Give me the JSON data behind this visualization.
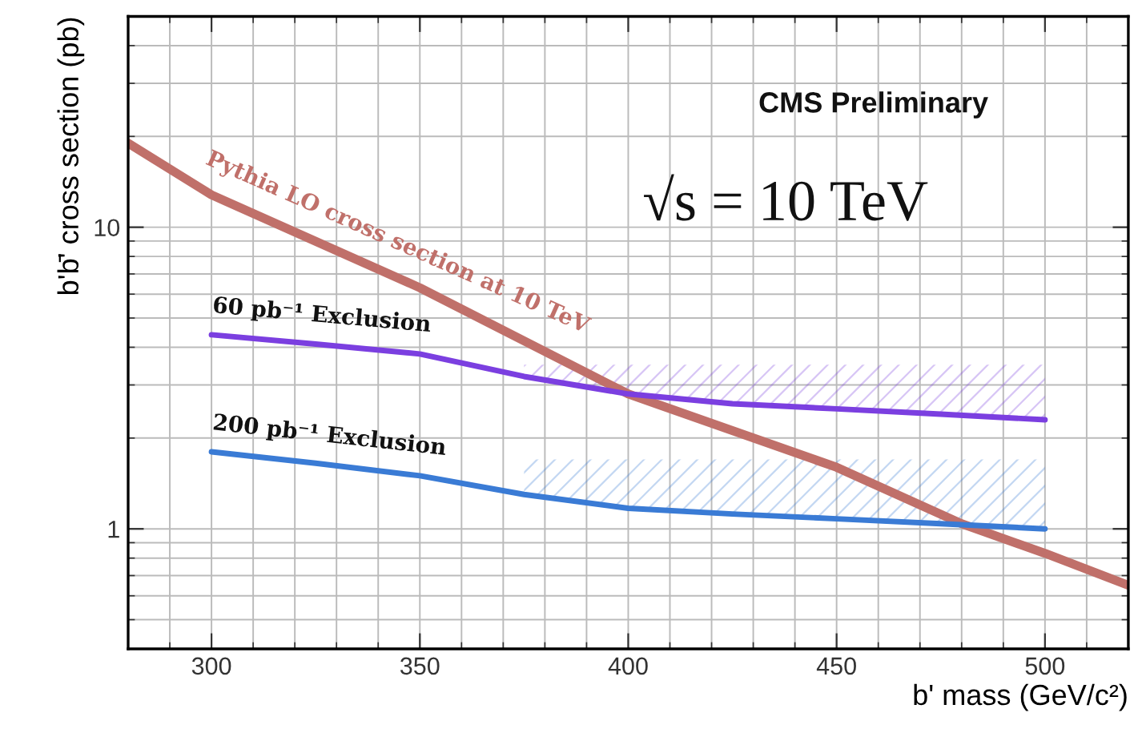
{
  "chart_data": {
    "type": "line",
    "xlabel": "b' mass (GeV/c²)",
    "ylabel": "b'b̄' cross section (pb)",
    "log": "y",
    "grid": true,
    "legend": false,
    "line_style": "solid",
    "marker": "none",
    "xlim": [
      280,
      520
    ],
    "xticks": [
      300,
      350,
      400,
      450,
      500
    ],
    "ylim": [
      0.4,
      50
    ],
    "yticks": [
      1,
      10
    ],
    "series": [
      {
        "name": "Pythia LO cross section at 10 TeV",
        "color": "#c0706a",
        "x": [
          280,
          300,
          350,
          400,
          450,
          480,
          500,
          520
        ],
        "values": [
          19,
          12.8,
          6.3,
          2.8,
          1.6,
          1.04,
          0.83,
          0.65
        ]
      },
      {
        "name": "60 pb⁻¹ Exclusion",
        "color": "#7b3fe0",
        "x": [
          300,
          325,
          350,
          375,
          400,
          425,
          450,
          475,
          500
        ],
        "values": [
          4.4,
          4.1,
          3.8,
          3.2,
          2.8,
          2.6,
          2.5,
          2.4,
          2.3
        ],
        "lower": [
          null,
          null,
          null,
          3.2,
          2.8,
          2.6,
          2.5,
          2.4,
          2.3
        ],
        "upper": [
          null,
          null,
          null,
          3.5,
          3.5,
          3.5,
          3.5,
          3.5,
          3.5
        ]
      },
      {
        "name": "200 pb⁻¹ Exclusion",
        "color": "#3a7bd5",
        "x": [
          300,
          325,
          350,
          375,
          400,
          425,
          450,
          475,
          500
        ],
        "values": [
          1.8,
          1.65,
          1.5,
          1.3,
          1.17,
          1.12,
          1.08,
          1.04,
          1.0
        ],
        "lower": [
          null,
          null,
          null,
          1.3,
          1.17,
          1.12,
          1.08,
          1.04,
          1.0
        ],
        "upper": [
          null,
          null,
          null,
          1.7,
          1.7,
          1.7,
          1.7,
          1.7,
          1.7
        ]
      }
    ],
    "annotations": [
      "CMS Preliminary",
      "√s = 10 TeV"
    ]
  }
}
